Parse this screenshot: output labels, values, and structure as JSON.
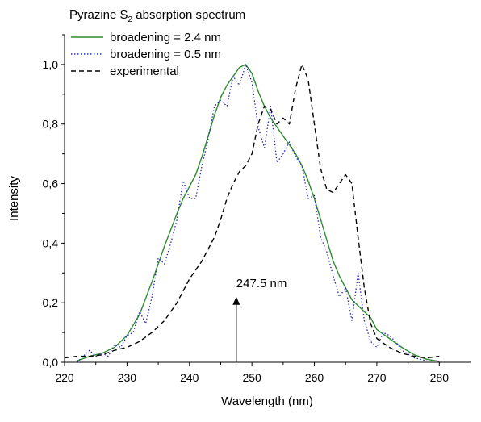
{
  "chart_data": {
    "type": "line",
    "title": "Pyrazine S",
    "title_sub": "2",
    "title_suffix": " absorption spectrum",
    "xlabel": "Wavelength (nm)",
    "ylabel": "Intensity",
    "xlim": [
      220,
      285
    ],
    "ylim": [
      0,
      1.1
    ],
    "xticks": [
      220,
      230,
      240,
      250,
      260,
      270,
      280
    ],
    "xtick_labels": [
      "220",
      "230",
      "240",
      "250",
      "260",
      "270",
      "280"
    ],
    "yticks": [
      0,
      0.2,
      0.4,
      0.6,
      0.8,
      1.0
    ],
    "ytick_labels": [
      "0,0",
      "0,2",
      "0,4",
      "0,6",
      "0,8",
      "1,0"
    ],
    "grid": false,
    "legend_position": "top-left",
    "annotation": {
      "text": "247.5 nm",
      "x": 247.5,
      "y_from": 0.0,
      "y_to": 0.22
    },
    "series": [
      {
        "name": "broadening = 2.4 nm",
        "color": "#2e8b2e",
        "style": "solid",
        "x": [
          222,
          224,
          226,
          228,
          230,
          232,
          234,
          236,
          238,
          239,
          240,
          241,
          242,
          243,
          244,
          245,
          246,
          247,
          248,
          249,
          250,
          251,
          252,
          253,
          254,
          255,
          256,
          257,
          258,
          259,
          260,
          261,
          262,
          263,
          264,
          265,
          266,
          267,
          268,
          269,
          270,
          272,
          274,
          276,
          278,
          280
        ],
        "y": [
          0.005,
          0.02,
          0.03,
          0.05,
          0.09,
          0.16,
          0.27,
          0.39,
          0.5,
          0.55,
          0.59,
          0.63,
          0.69,
          0.76,
          0.83,
          0.89,
          0.93,
          0.96,
          0.99,
          1.0,
          0.97,
          0.91,
          0.86,
          0.82,
          0.79,
          0.76,
          0.73,
          0.7,
          0.66,
          0.61,
          0.55,
          0.48,
          0.41,
          0.34,
          0.29,
          0.25,
          0.21,
          0.19,
          0.17,
          0.15,
          0.11,
          0.08,
          0.05,
          0.025,
          0.01,
          0.003
        ]
      },
      {
        "name": "broadening = 0.5 nm",
        "color": "#2b2bb8",
        "style": "dotted",
        "x": [
          222,
          223,
          224,
          225,
          226,
          227,
          228,
          229,
          230,
          231,
          232,
          233,
          234,
          235,
          236,
          237,
          238,
          239,
          240,
          241,
          242,
          243,
          244,
          245,
          246,
          247,
          248,
          249,
          250,
          251,
          252,
          253,
          254,
          255,
          256,
          257,
          258,
          259,
          260,
          261,
          262,
          263,
          264,
          265,
          266,
          267,
          268,
          269,
          270,
          271,
          272,
          273,
          274,
          276,
          278
        ],
        "y": [
          0.0,
          0.02,
          0.04,
          0.02,
          0.03,
          0.02,
          0.06,
          0.05,
          0.09,
          0.1,
          0.17,
          0.13,
          0.22,
          0.35,
          0.33,
          0.4,
          0.48,
          0.61,
          0.55,
          0.55,
          0.66,
          0.75,
          0.86,
          0.88,
          0.86,
          0.96,
          0.93,
          1.0,
          0.94,
          0.79,
          0.72,
          0.86,
          0.67,
          0.7,
          0.74,
          0.69,
          0.66,
          0.55,
          0.56,
          0.42,
          0.37,
          0.29,
          0.22,
          0.25,
          0.14,
          0.3,
          0.14,
          0.07,
          0.05,
          0.1,
          0.09,
          0.07,
          0.04,
          0.015,
          0.005
        ]
      },
      {
        "name": "experimental",
        "color": "#000000",
        "style": "dashed",
        "x": [
          220,
          222,
          224,
          226,
          228,
          230,
          232,
          234,
          236,
          238,
          240,
          242,
          244,
          245,
          246,
          247,
          248,
          249,
          250,
          251,
          252,
          253,
          254,
          255,
          256,
          257,
          258,
          259,
          260,
          261,
          262,
          263,
          264,
          265,
          266,
          267,
          268,
          269,
          270,
          272,
          274,
          276,
          278,
          280
        ],
        "y": [
          0.015,
          0.02,
          0.02,
          0.025,
          0.04,
          0.05,
          0.07,
          0.1,
          0.14,
          0.2,
          0.28,
          0.34,
          0.42,
          0.48,
          0.55,
          0.6,
          0.64,
          0.66,
          0.7,
          0.8,
          0.86,
          0.85,
          0.8,
          0.82,
          0.8,
          0.92,
          1.0,
          0.95,
          0.8,
          0.65,
          0.58,
          0.57,
          0.6,
          0.63,
          0.6,
          0.42,
          0.25,
          0.13,
          0.08,
          0.05,
          0.03,
          0.02,
          0.015,
          0.02
        ]
      }
    ]
  }
}
